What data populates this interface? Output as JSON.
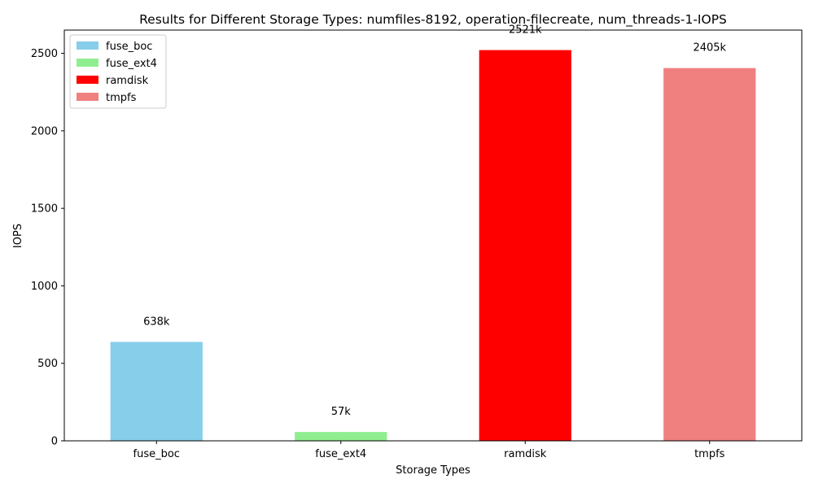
{
  "chart_data": {
    "type": "bar",
    "title": "Results for Different Storage Types: numfiles-8192, operation-filecreate, num_threads-1-IOPS",
    "xlabel": "Storage Types",
    "ylabel": "IOPS",
    "categories": [
      "fuse_boc",
      "fuse_ext4",
      "ramdisk",
      "tmpfs"
    ],
    "values": [
      638,
      57,
      2521,
      2405
    ],
    "data_labels": [
      "638k",
      "57k",
      "2521k",
      "2405k"
    ],
    "colors": [
      "#87ceeb",
      "#90ee90",
      "#ff0000",
      "#f08080"
    ],
    "ylim": [
      0,
      2650
    ],
    "yticks": [
      0,
      500,
      1000,
      1500,
      2000,
      2500
    ],
    "grid": false,
    "legend": {
      "placement": "top-left",
      "entries": [
        "fuse_boc",
        "fuse_ext4",
        "ramdisk",
        "tmpfs"
      ]
    }
  }
}
